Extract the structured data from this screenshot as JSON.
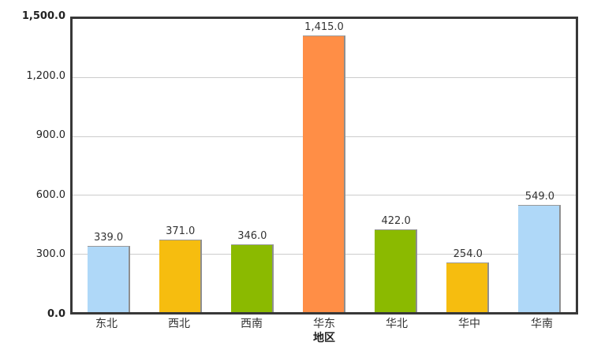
{
  "chart_data": {
    "type": "bar",
    "title": "",
    "xlabel": "地区",
    "ylabel": "",
    "categories": [
      "东北",
      "西北",
      "西南",
      "华东",
      "华北",
      "华中",
      "华南"
    ],
    "values": [
      339,
      371,
      346,
      1415,
      422,
      254,
      549
    ],
    "value_labels": [
      "339.0",
      "371.0",
      "346.0",
      "1,415.0",
      "422.0",
      "254.0",
      "549.0"
    ],
    "bar_colors": [
      "#AFD8F8",
      "#F6BD0F",
      "#8BBA00",
      "#FF8E46",
      "#8BBA00",
      "#F6BD0F",
      "#AFD8F8"
    ],
    "ylim": [
      0,
      1500
    ],
    "y_tick_labels": [
      "1,500.0",
      "1,200.0",
      "900.0",
      "600.0",
      "300.0",
      "0.0"
    ],
    "y_tick_values": [
      1500,
      1200,
      900,
      600,
      300,
      0
    ],
    "grid": true,
    "legend": false
  },
  "theme": {
    "background": "#ffffff",
    "plot_border": "#383838",
    "gridline": "#cccccc",
    "bar_shadow": "#8f8f8f",
    "label_text": "#333333",
    "axis_text": "#222222"
  },
  "layout_text": {
    "x_axis_title": "地区"
  }
}
